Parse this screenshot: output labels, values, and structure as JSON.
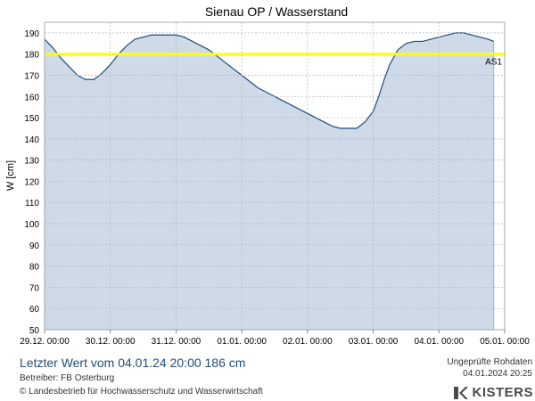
{
  "chart_data": {
    "type": "area",
    "title": "Sienau OP / Wasserstand",
    "ylabel": "W [cm]",
    "xlabel": "",
    "ylim": [
      50,
      195
    ],
    "yticks": [
      50,
      60,
      70,
      80,
      90,
      100,
      110,
      120,
      130,
      140,
      150,
      160,
      170,
      180,
      190
    ],
    "xlim": [
      "29.12. 00:00",
      "05.01. 00:00"
    ],
    "xtick_labels": [
      "29.12. 00:00",
      "30.12. 00:00",
      "31.12. 00:00",
      "01.01. 00:00",
      "02.01. 00:00",
      "03.01. 00:00",
      "04.01. 00:00",
      "05.01. 00:00"
    ],
    "grid": true,
    "x_days_from_start_note": "",
    "series": [
      {
        "name": "",
        "color": "#1f4e79",
        "fill": "#cfdae8",
        "x": [
          "29.12. 00:00",
          "29.12. 03:00",
          "29.12. 06:00",
          "29.12. 09:00",
          "29.12. 12:00",
          "29.12. 15:00",
          "29.12. 18:00",
          "29.12. 21:00",
          "30.12. 00:00",
          "30.12. 03:00",
          "30.12. 06:00",
          "30.12. 09:00",
          "30.12. 12:00",
          "30.12. 15:00",
          "30.12. 18:00",
          "30.12. 21:00",
          "31.12. 00:00",
          "31.12. 03:00",
          "31.12. 06:00",
          "31.12. 09:00",
          "31.12. 12:00",
          "31.12. 15:00",
          "31.12. 18:00",
          "31.12. 21:00",
          "01.01. 00:00",
          "01.01. 03:00",
          "01.01. 06:00",
          "01.01. 09:00",
          "01.01. 12:00",
          "01.01. 15:00",
          "01.01. 18:00",
          "01.01. 21:00",
          "02.01. 00:00",
          "02.01. 03:00",
          "02.01. 06:00",
          "02.01. 09:00",
          "02.01. 12:00",
          "02.01. 15:00",
          "02.01. 18:00",
          "02.01. 21:00",
          "03.01. 00:00",
          "03.01. 02:00",
          "03.01. 04:00",
          "03.01. 06:00",
          "03.01. 09:00",
          "03.01. 12:00",
          "03.01. 15:00",
          "03.01. 18:00",
          "03.01. 21:00",
          "04.01. 00:00",
          "04.01. 03:00",
          "04.01. 06:00",
          "04.01. 09:00",
          "04.01. 12:00",
          "04.01. 15:00",
          "04.01. 18:00",
          "04.01. 20:00"
        ],
        "values": [
          187,
          183,
          178,
          174,
          170,
          168,
          168,
          171,
          175,
          180,
          184,
          187,
          188,
          189,
          189,
          189,
          189,
          188,
          186,
          184,
          182,
          179,
          176,
          173,
          170,
          167,
          164,
          162,
          160,
          158,
          156,
          154,
          152,
          150,
          148,
          146,
          145,
          145,
          145,
          148,
          153,
          160,
          168,
          175,
          182,
          185,
          186,
          186,
          187,
          188,
          189,
          190,
          190,
          189,
          188,
          187,
          186
        ]
      }
    ],
    "threshold": {
      "label": "AS1",
      "value": 180,
      "color": "#ffff00"
    }
  },
  "footer": {
    "latest": "Letzter Wert vom 04.01.24 20:00  186 cm",
    "operator": "Betreiber: FB Osterburg",
    "copyright": "© Landesbetrieb für Hochwasserschutz und Wasserwirtschaft",
    "status": "Ungeprüfte Rohdaten",
    "timestamp": "04.01.2024 20:25",
    "brand": "KISTERS"
  }
}
